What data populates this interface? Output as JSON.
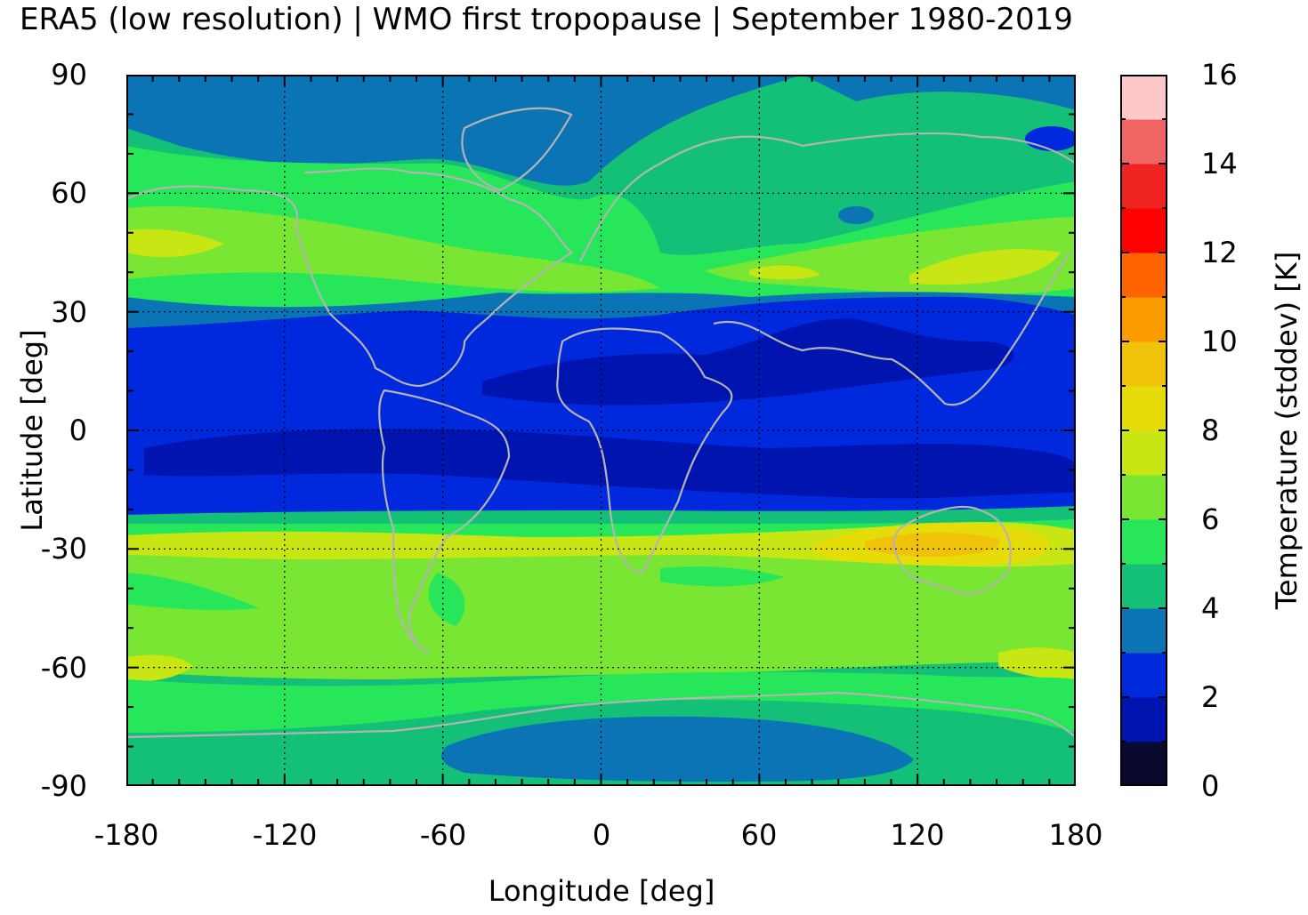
{
  "title": "ERA5 (low resolution) | WMO first tropopause | September 1980-2019",
  "axes": {
    "xlabel": "Longitude [deg]",
    "ylabel": "Latitude [deg]",
    "xticks": [
      "-180",
      "-120",
      "-60",
      "0",
      "60",
      "120",
      "180"
    ],
    "yticks": [
      "90",
      "60",
      "30",
      "0",
      "-30",
      "-60",
      "-90"
    ],
    "xlim": [
      -180,
      180
    ],
    "ylim": [
      -90,
      90
    ],
    "grid": true
  },
  "colorbar": {
    "label": "Temperature (stddev) [K]",
    "ticks": [
      "16",
      "14",
      "12",
      "10",
      "8",
      "6",
      "4",
      "2",
      "0"
    ],
    "range": [
      0,
      16
    ],
    "step": 1,
    "colors": [
      "#0a0a30",
      "#0014b0",
      "#0028dc",
      "#0a74b4",
      "#14c078",
      "#28e65a",
      "#78e632",
      "#c8e614",
      "#e6dc0a",
      "#f0c30a",
      "#fa9c00",
      "#ff6400",
      "#ff0000",
      "#f02323",
      "#f06464",
      "#ffc8c8"
    ]
  },
  "colors": {
    "coastline": "#b4b4b4",
    "frame": "#000000"
  }
}
